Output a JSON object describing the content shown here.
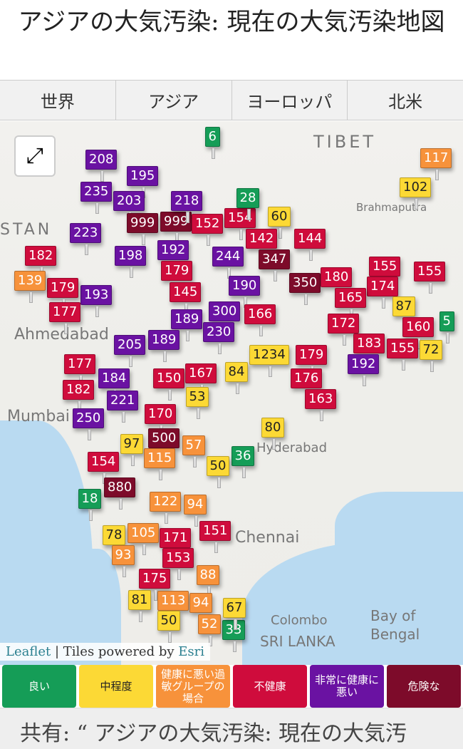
{
  "title": "アジアの大気汚染: 現在の大気汚染地図",
  "tabs": [
    {
      "label": "世界"
    },
    {
      "label": "アジア"
    },
    {
      "label": "ヨーロッパ"
    },
    {
      "label": "北米"
    }
  ],
  "colors": {
    "good": "#159d57",
    "moderate": "#fcd935",
    "usg": "#f7923b",
    "unhealthy": "#cf0c3c",
    "very_unhealthy": "#6a12a2",
    "hazardous": "#7d0b2a"
  },
  "map": {
    "fullscreen_icon": "expand-arrows-icon",
    "labels": [
      "TIBET",
      "STAN",
      "Ahmedabad",
      "Mumbai",
      "Hyderabad",
      "Chennai",
      "Bay of",
      "Bengal",
      "Brahmaputra",
      "SRI LANKA",
      "Colombo"
    ],
    "attribution": {
      "leaflet": "Leaflet",
      "sep": "|",
      "tiles": "Tiles powered by",
      "esri": "Esri"
    },
    "markers": [
      {
        "v": "6",
        "l": "good"
      },
      {
        "v": "208",
        "l": "very_unhealthy"
      },
      {
        "v": "195",
        "l": "very_unhealthy"
      },
      {
        "v": "235",
        "l": "very_unhealthy"
      },
      {
        "v": "203",
        "l": "very_unhealthy"
      },
      {
        "v": "999",
        "l": "hazardous"
      },
      {
        "v": "999",
        "l": "hazardous"
      },
      {
        "v": "218",
        "l": "very_unhealthy"
      },
      {
        "v": "152",
        "l": "unhealthy"
      },
      {
        "v": "154",
        "l": "unhealthy"
      },
      {
        "v": "60",
        "l": "moderate"
      },
      {
        "v": "28",
        "l": "good"
      },
      {
        "v": "102",
        "l": "moderate"
      },
      {
        "v": "117",
        "l": "usg"
      },
      {
        "v": "223",
        "l": "very_unhealthy"
      },
      {
        "v": "182",
        "l": "unhealthy"
      },
      {
        "v": "144",
        "l": "unhealthy"
      },
      {
        "v": "142",
        "l": "unhealthy"
      },
      {
        "v": "244",
        "l": "very_unhealthy"
      },
      {
        "v": "198",
        "l": "very_unhealthy"
      },
      {
        "v": "192",
        "l": "very_unhealthy"
      },
      {
        "v": "347",
        "l": "hazardous"
      },
      {
        "v": "350",
        "l": "hazardous"
      },
      {
        "v": "190",
        "l": "very_unhealthy"
      },
      {
        "v": "180",
        "l": "unhealthy"
      },
      {
        "v": "155",
        "l": "unhealthy"
      },
      {
        "v": "155",
        "l": "unhealthy"
      },
      {
        "v": "174",
        "l": "unhealthy"
      },
      {
        "v": "165",
        "l": "unhealthy"
      },
      {
        "v": "87",
        "l": "moderate"
      },
      {
        "v": "193",
        "l": "very_unhealthy"
      },
      {
        "v": "179",
        "l": "unhealthy"
      },
      {
        "v": "139",
        "l": "usg"
      },
      {
        "v": "179",
        "l": "unhealthy"
      },
      {
        "v": "145",
        "l": "unhealthy"
      },
      {
        "v": "300",
        "l": "very_unhealthy"
      },
      {
        "v": "166",
        "l": "unhealthy"
      },
      {
        "v": "189",
        "l": "very_unhealthy"
      },
      {
        "v": "189",
        "l": "very_unhealthy"
      },
      {
        "v": "230",
        "l": "very_unhealthy"
      },
      {
        "v": "177",
        "l": "unhealthy"
      },
      {
        "v": "205",
        "l": "very_unhealthy"
      },
      {
        "v": "172",
        "l": "unhealthy"
      },
      {
        "v": "160",
        "l": "unhealthy"
      },
      {
        "v": "5",
        "l": "good"
      },
      {
        "v": "183",
        "l": "unhealthy"
      },
      {
        "v": "192",
        "l": "very_unhealthy"
      },
      {
        "v": "155",
        "l": "unhealthy"
      },
      {
        "v": "72",
        "l": "moderate"
      },
      {
        "v": "179",
        "l": "unhealthy"
      },
      {
        "v": "1234",
        "l": "moderate"
      },
      {
        "v": "84",
        "l": "moderate"
      },
      {
        "v": "177",
        "l": "unhealthy"
      },
      {
        "v": "184",
        "l": "very_unhealthy"
      },
      {
        "v": "150",
        "l": "unhealthy"
      },
      {
        "v": "167",
        "l": "unhealthy"
      },
      {
        "v": "182",
        "l": "unhealthy"
      },
      {
        "v": "221",
        "l": "very_unhealthy"
      },
      {
        "v": "53",
        "l": "moderate"
      },
      {
        "v": "176",
        "l": "unhealthy"
      },
      {
        "v": "163",
        "l": "unhealthy"
      },
      {
        "v": "170",
        "l": "unhealthy"
      },
      {
        "v": "250",
        "l": "very_unhealthy"
      },
      {
        "v": "500",
        "l": "hazardous"
      },
      {
        "v": "97",
        "l": "moderate"
      },
      {
        "v": "115",
        "l": "usg"
      },
      {
        "v": "57",
        "l": "usg"
      },
      {
        "v": "80",
        "l": "moderate"
      },
      {
        "v": "36",
        "l": "good"
      },
      {
        "v": "50",
        "l": "moderate"
      },
      {
        "v": "154",
        "l": "unhealthy"
      },
      {
        "v": "880",
        "l": "hazardous"
      },
      {
        "v": "18",
        "l": "good"
      },
      {
        "v": "122",
        "l": "usg"
      },
      {
        "v": "94",
        "l": "usg"
      },
      {
        "v": "78",
        "l": "moderate"
      },
      {
        "v": "105",
        "l": "usg"
      },
      {
        "v": "171",
        "l": "unhealthy"
      },
      {
        "v": "151",
        "l": "unhealthy"
      },
      {
        "v": "93",
        "l": "usg"
      },
      {
        "v": "153",
        "l": "unhealthy"
      },
      {
        "v": "175",
        "l": "unhealthy"
      },
      {
        "v": "88",
        "l": "usg"
      },
      {
        "v": "113",
        "l": "usg"
      },
      {
        "v": "81",
        "l": "moderate"
      },
      {
        "v": "94",
        "l": "usg"
      },
      {
        "v": "52",
        "l": "usg"
      },
      {
        "v": "50",
        "l": "moderate"
      },
      {
        "v": "33",
        "l": "good"
      },
      {
        "v": "67",
        "l": "moderate"
      }
    ]
  },
  "legend": [
    {
      "label": "良い",
      "l": "good"
    },
    {
      "label": "中程度",
      "l": "moderate"
    },
    {
      "label": "健康に悪い過敏グループの場合",
      "l": "usg"
    },
    {
      "label": "不健康",
      "l": "unhealthy"
    },
    {
      "label": "非常に健康に悪い",
      "l": "very_unhealthy"
    },
    {
      "label": "危険な",
      "l": "hazardous"
    }
  ],
  "footer": "共有: “ アジアの大気汚染: 現在の大気汚"
}
